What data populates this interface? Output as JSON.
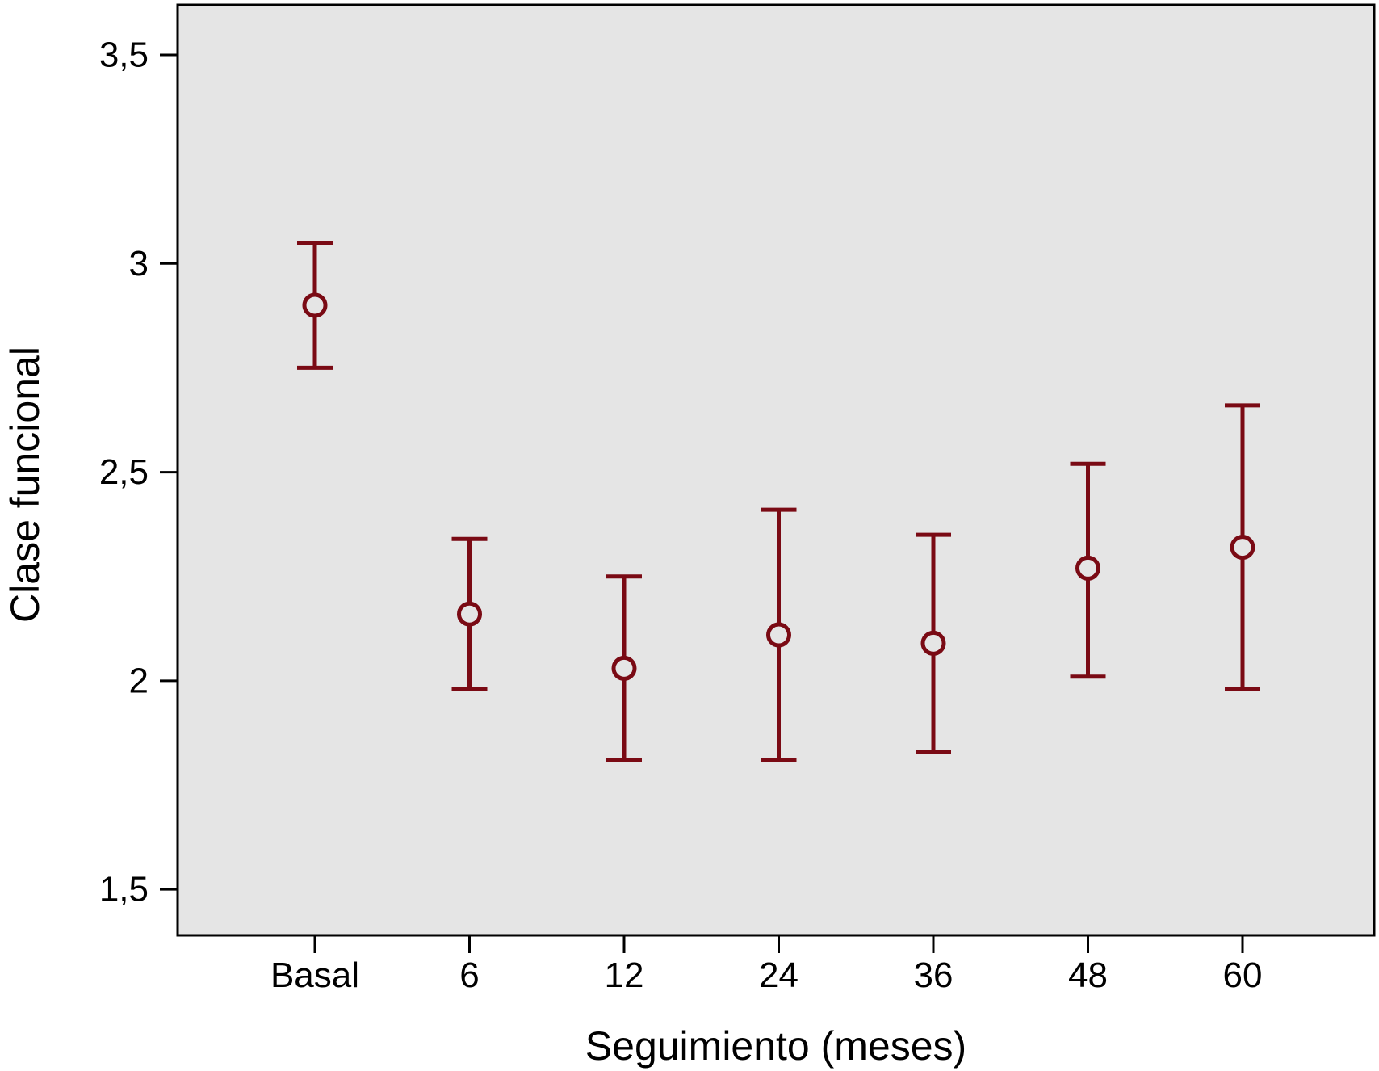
{
  "chart_data": {
    "type": "scatter",
    "subtype": "error-bar",
    "title": "",
    "xlabel": "Seguimiento (meses)",
    "ylabel": "Clase funcional",
    "categories": [
      "Basal",
      "6",
      "12",
      "24",
      "36",
      "48",
      "60"
    ],
    "y_ticks": [
      "3,5",
      "3",
      "2,5",
      "2",
      "1,5"
    ],
    "y_tick_values": [
      3.5,
      3.0,
      2.5,
      2.0,
      1.5
    ],
    "ylim": [
      1.39,
      3.62
    ],
    "grid": false,
    "legend": "none",
    "series": [
      {
        "mean": [
          2.9,
          2.16,
          2.03,
          2.11,
          2.09,
          2.27,
          2.32
        ],
        "lower": [
          2.75,
          1.98,
          1.81,
          1.81,
          1.83,
          2.01,
          1.98
        ],
        "upper": [
          3.05,
          2.34,
          2.25,
          2.41,
          2.35,
          2.52,
          2.66
        ]
      }
    ],
    "colors": {
      "marker": "#7a0a14",
      "plot_background": "#e5e5e5",
      "axis": "#000000"
    }
  }
}
